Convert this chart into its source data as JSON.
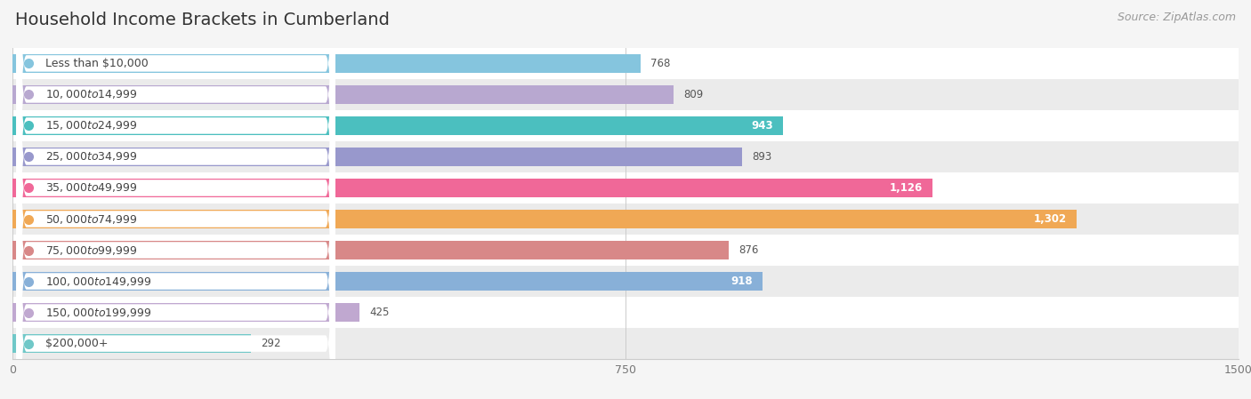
{
  "title": "Household Income Brackets in Cumberland",
  "source": "Source: ZipAtlas.com",
  "categories": [
    "Less than $10,000",
    "$10,000 to $14,999",
    "$15,000 to $24,999",
    "$25,000 to $34,999",
    "$35,000 to $49,999",
    "$50,000 to $74,999",
    "$75,000 to $99,999",
    "$100,000 to $149,999",
    "$150,000 to $199,999",
    "$200,000+"
  ],
  "values": [
    768,
    809,
    943,
    893,
    1126,
    1302,
    876,
    918,
    425,
    292
  ],
  "bar_colors": [
    "#85c5de",
    "#b8a8d0",
    "#4bbfbf",
    "#9898cc",
    "#f06898",
    "#f0a855",
    "#d88888",
    "#88b0d8",
    "#c0a8d0",
    "#70c8c8"
  ],
  "xlim": [
    0,
    1500
  ],
  "xticks": [
    0,
    750,
    1500
  ],
  "background_color": "#f5f5f5",
  "row_colors": [
    "#ffffff",
    "#ebebeb"
  ],
  "title_fontsize": 14,
  "source_fontsize": 9,
  "label_fontsize": 9,
  "value_fontsize": 8.5,
  "bar_height": 0.62,
  "white_label_values": [
    943,
    1126,
    1302,
    918
  ]
}
